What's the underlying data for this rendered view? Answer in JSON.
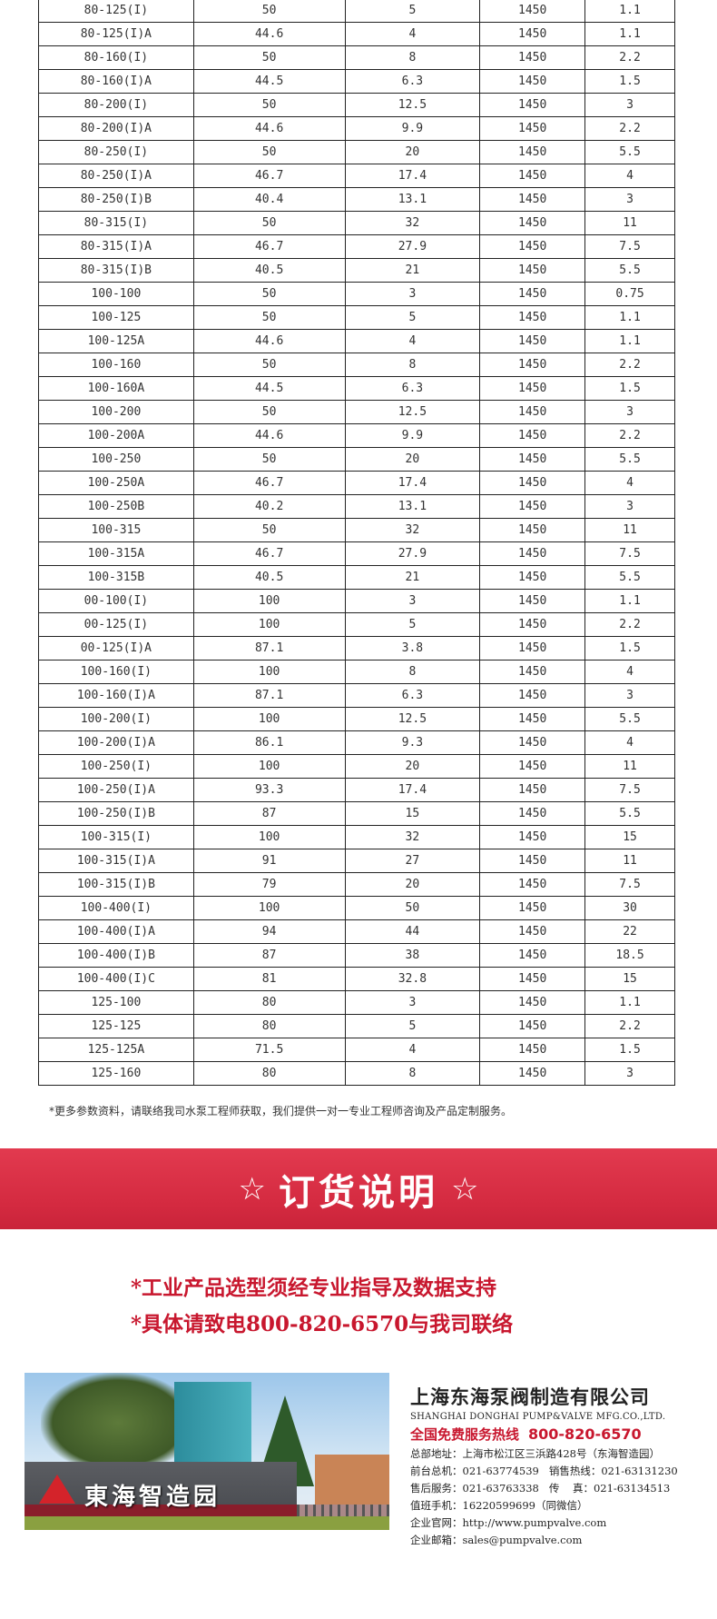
{
  "table": {
    "rows": [
      [
        "80-125(I)",
        "50",
        "5",
        "1450",
        "1.1"
      ],
      [
        "80-125(I)A",
        "44.6",
        "4",
        "1450",
        "1.1"
      ],
      [
        "80-160(I)",
        "50",
        "8",
        "1450",
        "2.2"
      ],
      [
        "80-160(I)A",
        "44.5",
        "6.3",
        "1450",
        "1.5"
      ],
      [
        "80-200(I)",
        "50",
        "12.5",
        "1450",
        "3"
      ],
      [
        "80-200(I)A",
        "44.6",
        "9.9",
        "1450",
        "2.2"
      ],
      [
        "80-250(I)",
        "50",
        "20",
        "1450",
        "5.5"
      ],
      [
        "80-250(I)A",
        "46.7",
        "17.4",
        "1450",
        "4"
      ],
      [
        "80-250(I)B",
        "40.4",
        "13.1",
        "1450",
        "3"
      ],
      [
        "80-315(I)",
        "50",
        "32",
        "1450",
        "11"
      ],
      [
        "80-315(I)A",
        "46.7",
        "27.9",
        "1450",
        "7.5"
      ],
      [
        "80-315(I)B",
        "40.5",
        "21",
        "1450",
        "5.5"
      ],
      [
        "100-100",
        "50",
        "3",
        "1450",
        "0.75"
      ],
      [
        "100-125",
        "50",
        "5",
        "1450",
        "1.1"
      ],
      [
        "100-125A",
        "44.6",
        "4",
        "1450",
        "1.1"
      ],
      [
        "100-160",
        "50",
        "8",
        "1450",
        "2.2"
      ],
      [
        "100-160A",
        "44.5",
        "6.3",
        "1450",
        "1.5"
      ],
      [
        "100-200",
        "50",
        "12.5",
        "1450",
        "3"
      ],
      [
        "100-200A",
        "44.6",
        "9.9",
        "1450",
        "2.2"
      ],
      [
        "100-250",
        "50",
        "20",
        "1450",
        "5.5"
      ],
      [
        "100-250A",
        "46.7",
        "17.4",
        "1450",
        "4"
      ],
      [
        "100-250B",
        "40.2",
        "13.1",
        "1450",
        "3"
      ],
      [
        "100-315",
        "50",
        "32",
        "1450",
        "11"
      ],
      [
        "100-315A",
        "46.7",
        "27.9",
        "1450",
        "7.5"
      ],
      [
        "100-315B",
        "40.5",
        "21",
        "1450",
        "5.5"
      ],
      [
        "00-100(I)",
        "100",
        "3",
        "1450",
        "1.1"
      ],
      [
        "00-125(I)",
        "100",
        "5",
        "1450",
        "2.2"
      ],
      [
        "00-125(I)A",
        "87.1",
        "3.8",
        "1450",
        "1.5"
      ],
      [
        "100-160(I)",
        "100",
        "8",
        "1450",
        "4"
      ],
      [
        "100-160(I)A",
        "87.1",
        "6.3",
        "1450",
        "3"
      ],
      [
        "100-200(I)",
        "100",
        "12.5",
        "1450",
        "5.5"
      ],
      [
        "100-200(I)A",
        "86.1",
        "9.3",
        "1450",
        "4"
      ],
      [
        "100-250(I)",
        "100",
        "20",
        "1450",
        "11"
      ],
      [
        "100-250(I)A",
        "93.3",
        "17.4",
        "1450",
        "7.5"
      ],
      [
        "100-250(I)B",
        "87",
        "15",
        "1450",
        "5.5"
      ],
      [
        "100-315(I)",
        "100",
        "32",
        "1450",
        "15"
      ],
      [
        "100-315(I)A",
        "91",
        "27",
        "1450",
        "11"
      ],
      [
        "100-315(I)B",
        "79",
        "20",
        "1450",
        "7.5"
      ],
      [
        "100-400(I)",
        "100",
        "50",
        "1450",
        "30"
      ],
      [
        "100-400(I)A",
        "94",
        "44",
        "1450",
        "22"
      ],
      [
        "100-400(I)B",
        "87",
        "38",
        "1450",
        "18.5"
      ],
      [
        "100-400(I)C",
        "81",
        "32.8",
        "1450",
        "15"
      ],
      [
        "125-100",
        "80",
        "3",
        "1450",
        "1.1"
      ],
      [
        "125-125",
        "80",
        "5",
        "1450",
        "2.2"
      ],
      [
        "125-125A",
        "71.5",
        "4",
        "1450",
        "1.5"
      ],
      [
        "125-160",
        "80",
        "8",
        "1450",
        "3"
      ]
    ]
  },
  "note": "*更多参数资料，请联络我司水泵工程师获取，我们提供一对一专业工程师咨询及产品定制服务。",
  "banner": {
    "star_left": "☆",
    "title": "订货说明",
    "star_right": "☆",
    "color": "#d42a40"
  },
  "order_notes": [
    "*工业产品选型须经专业指导及数据支持",
    "*具体请致电800-820-6570与我司联络"
  ],
  "photo": {
    "sign_text": "東海智造园",
    "logo_text": "东"
  },
  "company": {
    "name_cn": "上海东海泵阀制造有限公司",
    "name_en": "SHANGHAI DONGHAI PUMP&VALVE MFG.CO.,LTD.",
    "hotline_label": "全国免费服务热线",
    "hotline": "800-820-6570",
    "lines": [
      "总部地址：上海市松江区三浜路428号（东海智造园）",
      "前台总机：021-63774539   销售热线：021-63131230",
      "售后服务：021-63763338   传    真：021-63134513",
      "值班手机：16220599699（同微信）",
      "企业官网：http://www.pumpvalve.com",
      "企业邮箱：sales@pumpvalve.com"
    ]
  }
}
